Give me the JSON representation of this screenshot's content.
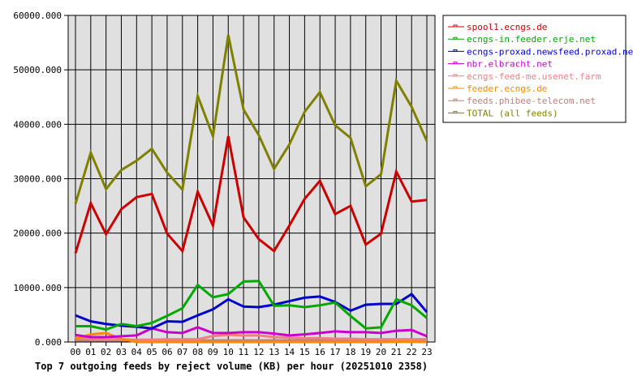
{
  "chart_data": {
    "type": "line",
    "title": "Top 7 outgoing feeds by reject volume (KB) per hour (20251010 2358)",
    "xlabel": "",
    "ylabel": "",
    "ylim": [
      0,
      60000
    ],
    "yticks": [
      "0.000",
      "10000.000",
      "20000.000",
      "30000.000",
      "40000.000",
      "50000.000",
      "60000.000"
    ],
    "grid": true,
    "legend_position": "right",
    "categories": [
      "00",
      "01",
      "02",
      "03",
      "04",
      "05",
      "06",
      "07",
      "08",
      "09",
      "10",
      "11",
      "12",
      "13",
      "14",
      "15",
      "16",
      "17",
      "18",
      "19",
      "20",
      "21",
      "22",
      "23"
    ],
    "series": [
      {
        "name": "spool1.ecngs.de",
        "color": "#cc0000",
        "values": [
          16300,
          25500,
          19800,
          24400,
          26600,
          27200,
          19900,
          16700,
          27600,
          21400,
          37800,
          22900,
          18900,
          16700,
          21400,
          26300,
          29600,
          23500,
          25000,
          17900,
          19900,
          31300,
          25800,
          26100
        ]
      },
      {
        "name": "ecngs-in.feeder.erje.net",
        "color": "#00aa00",
        "values": [
          2900,
          2900,
          2300,
          3300,
          2900,
          3500,
          4800,
          6200,
          10500,
          8200,
          8800,
          11100,
          11200,
          6650,
          6750,
          6400,
          6750,
          7250,
          4800,
          2500,
          2700,
          7850,
          6750,
          4400
        ]
      },
      {
        "name": "ecngs-proxad.newsfeed.proxad.net",
        "color": "#0000cc",
        "values": [
          4900,
          3800,
          3300,
          3000,
          2800,
          2500,
          3800,
          3700,
          4900,
          6000,
          7850,
          6500,
          6400,
          6850,
          7500,
          8150,
          8350,
          7350,
          5750,
          6850,
          7000,
          7000,
          8800,
          5500
        ]
      },
      {
        "name": "nbr.elbracht.net",
        "color": "#cc00cc",
        "values": [
          1300,
          900,
          900,
          1050,
          1200,
          2500,
          1800,
          1650,
          2700,
          1650,
          1650,
          1800,
          1800,
          1550,
          1200,
          1400,
          1650,
          1950,
          1800,
          1800,
          1650,
          2050,
          2200,
          1050
        ]
      },
      {
        "name": "ecngs-feed-me.usenet.farm",
        "color": "#f08080",
        "values": [
          800,
          600,
          500,
          500,
          400,
          400,
          500,
          500,
          500,
          1100,
          1300,
          1200,
          1200,
          900,
          800,
          700,
          700,
          600,
          600,
          500,
          500,
          500,
          500,
          500
        ]
      },
      {
        "name": "feeder.ecngs.de",
        "color": "#ff8800",
        "values": [
          550,
          1400,
          1650,
          550,
          0,
          0,
          0,
          0,
          0,
          0,
          0,
          0,
          0,
          0,
          0,
          0,
          0,
          0,
          0,
          0,
          0,
          50,
          50,
          0
        ]
      },
      {
        "name": "feeds.phibee-telecom.net",
        "color": "#c08080",
        "values": [
          300,
          300,
          300,
          300,
          300,
          300,
          300,
          300,
          300,
          300,
          300,
          300,
          300,
          300,
          300,
          300,
          300,
          300,
          300,
          300,
          300,
          300,
          300,
          300
        ]
      },
      {
        "name": "TOTAL (all feeds)",
        "color": "#808000",
        "values": [
          25400,
          34800,
          28100,
          31600,
          33300,
          35500,
          31100,
          28000,
          45200,
          37800,
          56400,
          42700,
          38000,
          31800,
          36300,
          42300,
          45900,
          39800,
          37500,
          28600,
          30800,
          48000,
          43200,
          36900
        ]
      }
    ]
  },
  "colors": {
    "plot_background": "#e0e0e0",
    "grid": "#000000",
    "page_background": "#ffffff"
  }
}
